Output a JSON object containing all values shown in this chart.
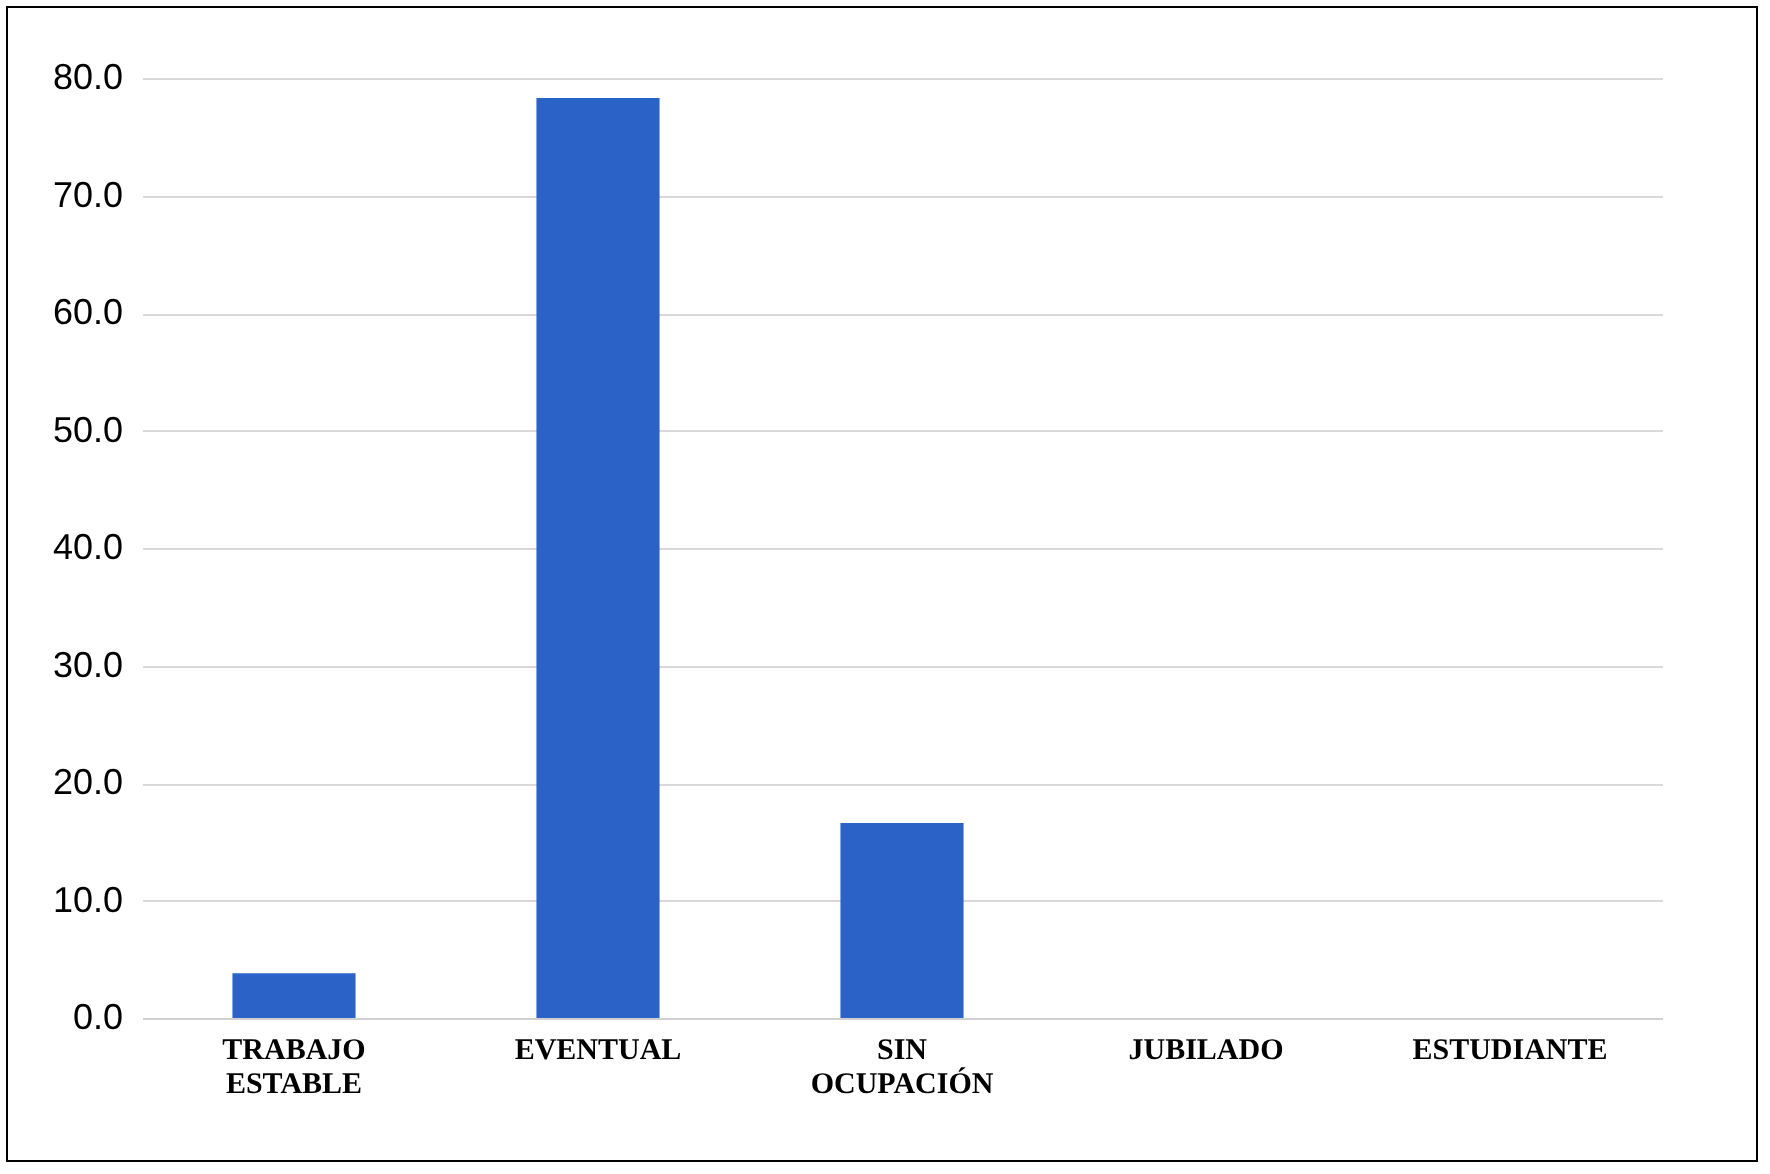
{
  "chart_data": {
    "type": "bar",
    "categories": [
      "TRABAJO ESTABLE",
      "EVENTUAL",
      "SIN OCUPACIÓN",
      "JUBILADO",
      "ESTUDIANTE"
    ],
    "values": [
      3.8,
      78.3,
      16.6,
      0,
      0
    ],
    "color": "#2b62c8",
    "ylim": [
      0,
      80
    ],
    "yticks": [
      {
        "value": 0,
        "label": "0.0"
      },
      {
        "value": 10,
        "label": "10.0"
      },
      {
        "value": 20,
        "label": "20.0"
      },
      {
        "value": 30,
        "label": "30.0"
      },
      {
        "value": 40,
        "label": "40.0"
      },
      {
        "value": 50,
        "label": "50.0"
      },
      {
        "value": 60,
        "label": "60.0"
      },
      {
        "value": 70,
        "label": "70.0"
      },
      {
        "value": 80,
        "label": "80.0"
      }
    ],
    "grid": "y"
  }
}
